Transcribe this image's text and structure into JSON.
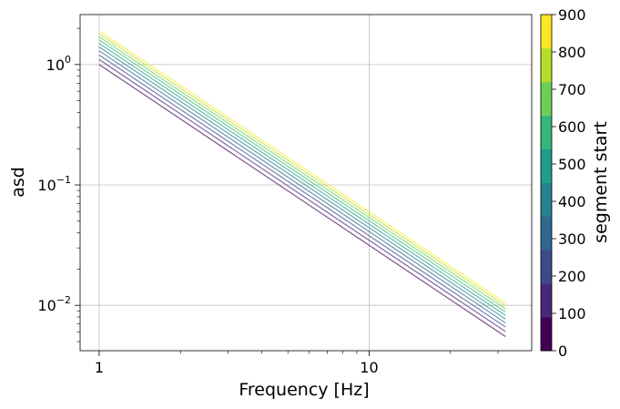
{
  "chart_data": {
    "type": "line",
    "xlabel": "Frequency [Hz]",
    "ylabel": "asd",
    "x_scale": "log",
    "y_scale": "log",
    "xlim": [
      0.85,
      40
    ],
    "ylim": [
      0.0042,
      2.6
    ],
    "grid": true,
    "x_ticks": [
      {
        "value": 1,
        "label": "1"
      },
      {
        "value": 10,
        "label": "10"
      }
    ],
    "y_ticks": [
      {
        "value": 1,
        "base": "10",
        "exp": "0"
      },
      {
        "value": 0.1,
        "base": "10",
        "exp": "−1"
      },
      {
        "value": 0.01,
        "base": "10",
        "exp": "−2"
      }
    ],
    "series": [
      {
        "x": [
          1,
          32
        ],
        "y": [
          1.0,
          0.0055
        ],
        "color_value": 0
      },
      {
        "x": [
          1,
          32
        ],
        "y": [
          1.1,
          0.00605
        ],
        "color_value": 100
      },
      {
        "x": [
          1,
          32
        ],
        "y": [
          1.2,
          0.0066
        ],
        "color_value": 200
      },
      {
        "x": [
          1,
          32
        ],
        "y": [
          1.3,
          0.00715
        ],
        "color_value": 300
      },
      {
        "x": [
          1,
          32
        ],
        "y": [
          1.4,
          0.0077
        ],
        "color_value": 400
      },
      {
        "x": [
          1,
          32
        ],
        "y": [
          1.5,
          0.00825
        ],
        "color_value": 500
      },
      {
        "x": [
          1,
          32
        ],
        "y": [
          1.6,
          0.0088
        ],
        "color_value": 600
      },
      {
        "x": [
          1,
          32
        ],
        "y": [
          1.7,
          0.00935
        ],
        "color_value": 700
      },
      {
        "x": [
          1,
          32
        ],
        "y": [
          1.8,
          0.0099
        ],
        "color_value": 800
      },
      {
        "x": [
          1,
          32
        ],
        "y": [
          1.9,
          0.01045
        ],
        "color_value": 900
      }
    ],
    "line_opacity": 0.7,
    "colorbar": {
      "label": "segment start",
      "colormap": "viridis",
      "range": [
        0,
        900
      ],
      "ticks": [
        "0",
        "100",
        "200",
        "300",
        "400",
        "500",
        "600",
        "700",
        "800",
        "900"
      ],
      "colors": [
        "#440154",
        "#482878",
        "#3e4989",
        "#31688e",
        "#26828e",
        "#1f9e89",
        "#35b779",
        "#6ece58",
        "#b5de2b",
        "#fde725"
      ]
    }
  }
}
